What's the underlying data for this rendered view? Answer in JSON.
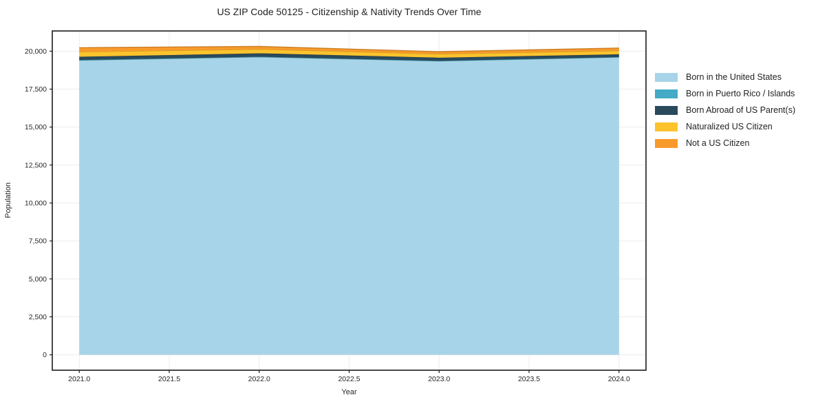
{
  "chart_data": {
    "type": "area",
    "stacked": true,
    "title": "US ZIP Code 50125 - Citizenship & Nativity Trends Over Time",
    "xlabel": "Year",
    "ylabel": "Population",
    "x": [
      2021,
      2022,
      2023,
      2024
    ],
    "series": [
      {
        "name": "Born in the United States",
        "color": "#a7d4e8",
        "values": [
          19400,
          19620,
          19350,
          19600
        ]
      },
      {
        "name": "Born in Puerto Rico / Islands",
        "color": "#44aac5",
        "values": [
          15,
          15,
          10,
          15
        ]
      },
      {
        "name": "Born Abroad of US Parent(s)",
        "color": "#2a4a5c",
        "values": [
          215,
          225,
          210,
          180
        ]
      },
      {
        "name": "Naturalized US Citizen",
        "color": "#fcc32d",
        "values": [
          330,
          270,
          245,
          240
        ]
      },
      {
        "name": "Not a US Citizen",
        "color": "#f89a2b",
        "values": [
          270,
          185,
          150,
          170
        ]
      }
    ],
    "totals": [
      20230,
      20315,
      19965,
      20205
    ],
    "xticks": [
      {
        "v": 2021.0,
        "label": "2021.0"
      },
      {
        "v": 2021.5,
        "label": "2021.5"
      },
      {
        "v": 2022.0,
        "label": "2022.0"
      },
      {
        "v": 2022.5,
        "label": "2022.5"
      },
      {
        "v": 2023.0,
        "label": "2023.0"
      },
      {
        "v": 2023.5,
        "label": "2023.5"
      },
      {
        "v": 2024.0,
        "label": "2024.0"
      }
    ],
    "yticks": [
      {
        "v": 0,
        "label": "0"
      },
      {
        "v": 2500,
        "label": "2,500"
      },
      {
        "v": 5000,
        "label": "5,000"
      },
      {
        "v": 7500,
        "label": "7,500"
      },
      {
        "v": 10000,
        "label": "10,000"
      },
      {
        "v": 12500,
        "label": "12,500"
      },
      {
        "v": 15000,
        "label": "15,000"
      },
      {
        "v": 17500,
        "label": "17,500"
      },
      {
        "v": 20000,
        "label": "20,000"
      }
    ],
    "xlim": [
      2020.85,
      2024.15
    ],
    "ylim": [
      -1016,
      21331
    ],
    "grid": true,
    "legend_position": "right-outside",
    "colors": {
      "grid": "#ececec",
      "spine": "#1a1a1a",
      "tick_text": "#262626",
      "background": "#ffffff"
    }
  }
}
